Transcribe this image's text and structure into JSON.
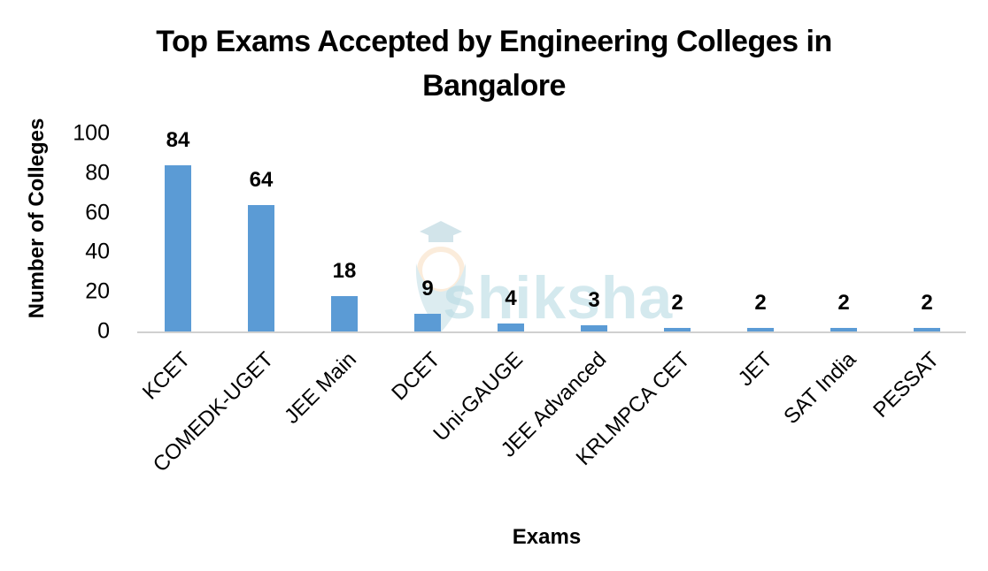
{
  "chart_data": {
    "type": "bar",
    "title": "Top Exams Accepted by Engineering Colleges in Bangalore",
    "title_lines": [
      "Top Exams Accepted by Engineering Colleges in",
      "Bangalore"
    ],
    "xlabel": "Exams",
    "ylabel": "Number of Colleges",
    "categories": [
      "KCET",
      "COMEDK-UGET",
      "JEE Main",
      "DCET",
      "Uni-GAUGE",
      "JEE Advanced",
      "KRLMPCA CET",
      "JET",
      "SAT India",
      "PESSAT"
    ],
    "values": [
      84,
      64,
      18,
      9,
      4,
      3,
      2,
      2,
      2,
      2
    ],
    "data_labels": [
      "84",
      "64",
      "18",
      "9",
      "4",
      "3",
      "2",
      "2",
      "2",
      "2"
    ],
    "ylim": [
      0,
      100
    ],
    "yticks": [
      "0",
      "20",
      "40",
      "60",
      "80",
      "100"
    ],
    "grid": false,
    "legend": "none",
    "bar_color": "#5b9bd5"
  },
  "watermark": {
    "text": "shiksha"
  }
}
